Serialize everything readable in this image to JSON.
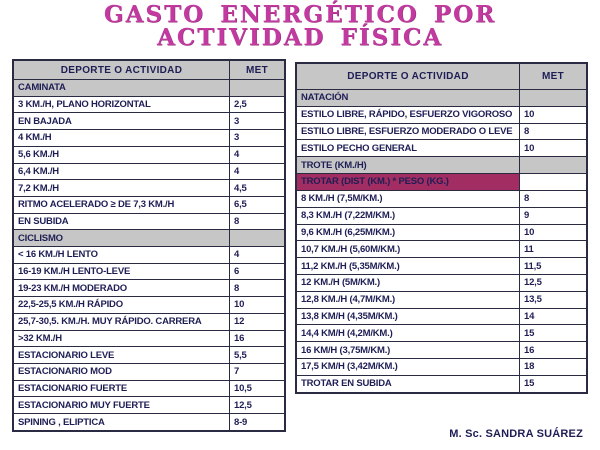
{
  "title": {
    "line1": "GASTO ENERGÉTICO POR",
    "line2": "ACTIVIDAD FÍSICA"
  },
  "footer": {
    "credit": "M. Sc. SANDRA SUÁREZ"
  },
  "colors": {
    "title_pink": "#c23aa0",
    "text_navy": "#1e1e55",
    "header_gray": "#c6c6c6",
    "highlight_pink": "#a12d63",
    "border_dark": "#2a2a42"
  },
  "tables": [
    {
      "name": "left-table",
      "columns": [
        "DEPORTE O ACTIVIDAD",
        "MET"
      ],
      "rows": [
        {
          "type": "section",
          "label": "CAMINATA",
          "met": ""
        },
        {
          "type": "data",
          "label": "3 KM./H, PLANO HORIZONTAL",
          "met": "2,5"
        },
        {
          "type": "data",
          "label": "EN BAJADA",
          "met": "3"
        },
        {
          "type": "data",
          "label": "4 KM./H",
          "met": "3"
        },
        {
          "type": "data",
          "label": "5,6 KM./H",
          "met": "4"
        },
        {
          "type": "data",
          "label": "6,4 KM./H",
          "met": "4"
        },
        {
          "type": "data",
          "label": "7,2 KM./H",
          "met": "4,5"
        },
        {
          "type": "data",
          "label": "RITMO ACELERADO ≥ DE 7,3 KM./H",
          "met": "6,5"
        },
        {
          "type": "data",
          "label": "EN SUBIDA",
          "met": "8"
        },
        {
          "type": "section",
          "label": "CICLISMO",
          "met": ""
        },
        {
          "type": "data",
          "label": "< 16 KM./H LENTO",
          "met": "4"
        },
        {
          "type": "data",
          "label": "16-19 KM./H LENTO-LEVE",
          "met": "6"
        },
        {
          "type": "data",
          "label": "19-23 KM./H MODERADO",
          "met": "8"
        },
        {
          "type": "data",
          "label": "22,5-25,5  KM./H RÁPIDO",
          "met": "10"
        },
        {
          "type": "data",
          "label": "25,7-30,5. KM./H. MUY RÁPIDO.  CARRERA",
          "met": "12"
        },
        {
          "type": "data",
          "label": ">32 KM./H",
          "met": "16"
        },
        {
          "type": "data",
          "label": "ESTACIONARIO LEVE",
          "met": "5,5"
        },
        {
          "type": "data",
          "label": "ESTACIONARIO MOD",
          "met": "7"
        },
        {
          "type": "data",
          "label": "ESTACIONARIO FUERTE",
          "met": "10,5"
        },
        {
          "type": "data",
          "label": "ESTACIONARIO MUY FUERTE",
          "met": "12,5"
        },
        {
          "type": "data",
          "label": "SPINING , ELIPTICA",
          "met": "8-9"
        }
      ]
    },
    {
      "name": "right-table",
      "columns": [
        "DEPORTE O ACTIVIDAD",
        "MET"
      ],
      "rows": [
        {
          "type": "section",
          "label": "NATACIÓN",
          "met": ""
        },
        {
          "type": "data",
          "label": "ESTILO LIBRE, RÁPIDO, ESFUERZO VIGOROSO",
          "met": "10"
        },
        {
          "type": "data",
          "label": "ESTILO LIBRE, ESFUERZO MODERADO O LEVE",
          "met": "8"
        },
        {
          "type": "data",
          "label": "ESTILO PECHO GENERAL",
          "met": "10"
        },
        {
          "type": "section",
          "label": "TROTE (KM./H)",
          "met": ""
        },
        {
          "type": "highlight",
          "label": "TROTAR  (DIST (KM.) * PESO (KG.)",
          "met": ""
        },
        {
          "type": "data",
          "label": "8 KM./H (7,5M/KM.)",
          "met": "8"
        },
        {
          "type": "data",
          "label": "8,3 KM./H (7,22M/KM.)",
          "met": "9"
        },
        {
          "type": "data",
          "label": "9,6 KM./H (6,25M/KM.)",
          "met": "10"
        },
        {
          "type": "data",
          "label": "10,7 KM./H (5,60M/KM.)",
          "met": "11"
        },
        {
          "type": "data",
          "label": "11,2 KM./H  (5,35M/KM.)",
          "met": "11,5"
        },
        {
          "type": "data",
          "label": "12 KM./H (5M/KM.)",
          "met": "12,5"
        },
        {
          "type": "data",
          "label": "12,8 KM./H (4,7M/KM.)",
          "met": "13,5"
        },
        {
          "type": "data",
          "label": "13,8 KM/H (4,35M/KM.)",
          "met": "14"
        },
        {
          "type": "data",
          "label": "14,4 KM/H (4,2M/KM.)",
          "met": "15"
        },
        {
          "type": "data",
          "label": "16 KM/H (3,75M/KM.)",
          "met": "16"
        },
        {
          "type": "data",
          "label": "17,5 KM/H (3,42M/KM.)",
          "met": "18"
        },
        {
          "type": "data",
          "label": "TROTAR EN SUBIDA",
          "met": "15"
        }
      ]
    }
  ]
}
